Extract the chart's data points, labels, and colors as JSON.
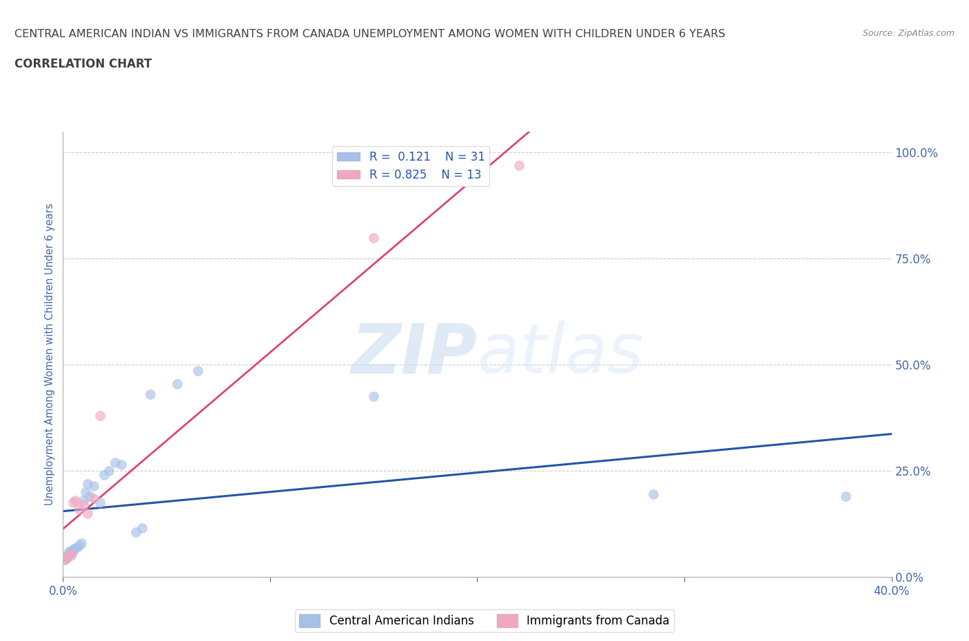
{
  "title_line1": "CENTRAL AMERICAN INDIAN VS IMMIGRANTS FROM CANADA UNEMPLOYMENT AMONG WOMEN WITH CHILDREN UNDER 6 YEARS",
  "title_line2": "CORRELATION CHART",
  "source": "Source: ZipAtlas.com",
  "ylabel": "Unemployment Among Women with Children Under 6 years",
  "xlim": [
    0.0,
    0.4
  ],
  "ylim": [
    0.0,
    1.05
  ],
  "xtick_labels": [
    "0.0%",
    "",
    "",
    "",
    "40.0%"
  ],
  "xtick_vals": [
    0.0,
    0.1,
    0.2,
    0.3,
    0.4
  ],
  "ytick_labels_right": [
    "100.0%",
    "75.0%",
    "50.0%",
    "25.0%",
    "0.0%"
  ],
  "ytick_vals": [
    1.0,
    0.75,
    0.5,
    0.25,
    0.0
  ],
  "R_blue": 0.121,
  "N_blue": 31,
  "R_pink": 0.825,
  "N_pink": 13,
  "legend_label_blue": "Central American Indians",
  "legend_label_pink": "Immigrants from Canada",
  "watermark_zip": "ZIP",
  "watermark_atlas": "atlas",
  "blue_scatter_x": [
    0.001,
    0.002,
    0.002,
    0.003,
    0.003,
    0.004,
    0.004,
    0.005,
    0.005,
    0.006,
    0.007,
    0.008,
    0.009,
    0.01,
    0.011,
    0.012,
    0.013,
    0.015,
    0.018,
    0.02,
    0.022,
    0.025,
    0.028,
    0.035,
    0.038,
    0.042,
    0.055,
    0.065,
    0.15,
    0.285,
    0.378
  ],
  "blue_scatter_y": [
    0.04,
    0.045,
    0.05,
    0.055,
    0.06,
    0.05,
    0.06,
    0.06,
    0.065,
    0.068,
    0.07,
    0.075,
    0.08,
    0.18,
    0.2,
    0.22,
    0.19,
    0.215,
    0.175,
    0.24,
    0.25,
    0.27,
    0.265,
    0.105,
    0.115,
    0.43,
    0.455,
    0.485,
    0.425,
    0.195,
    0.19
  ],
  "pink_scatter_x": [
    0.001,
    0.002,
    0.003,
    0.004,
    0.005,
    0.006,
    0.008,
    0.01,
    0.012,
    0.015,
    0.018,
    0.15,
    0.22
  ],
  "pink_scatter_y": [
    0.04,
    0.045,
    0.05,
    0.055,
    0.175,
    0.18,
    0.16,
    0.17,
    0.15,
    0.185,
    0.38,
    0.8,
    0.97
  ],
  "blue_line_color": "#2255aa",
  "pink_line_color": "#dd4477",
  "blue_dot_color": "#a8c0e8",
  "pink_dot_color": "#f0a8c0",
  "grid_color": "#cccccc",
  "background_color": "#ffffff",
  "title_color": "#404040",
  "axis_label_color": "#4466aa",
  "tick_color": "#4466aa",
  "dot_size": 100,
  "dot_alpha": 0.65
}
